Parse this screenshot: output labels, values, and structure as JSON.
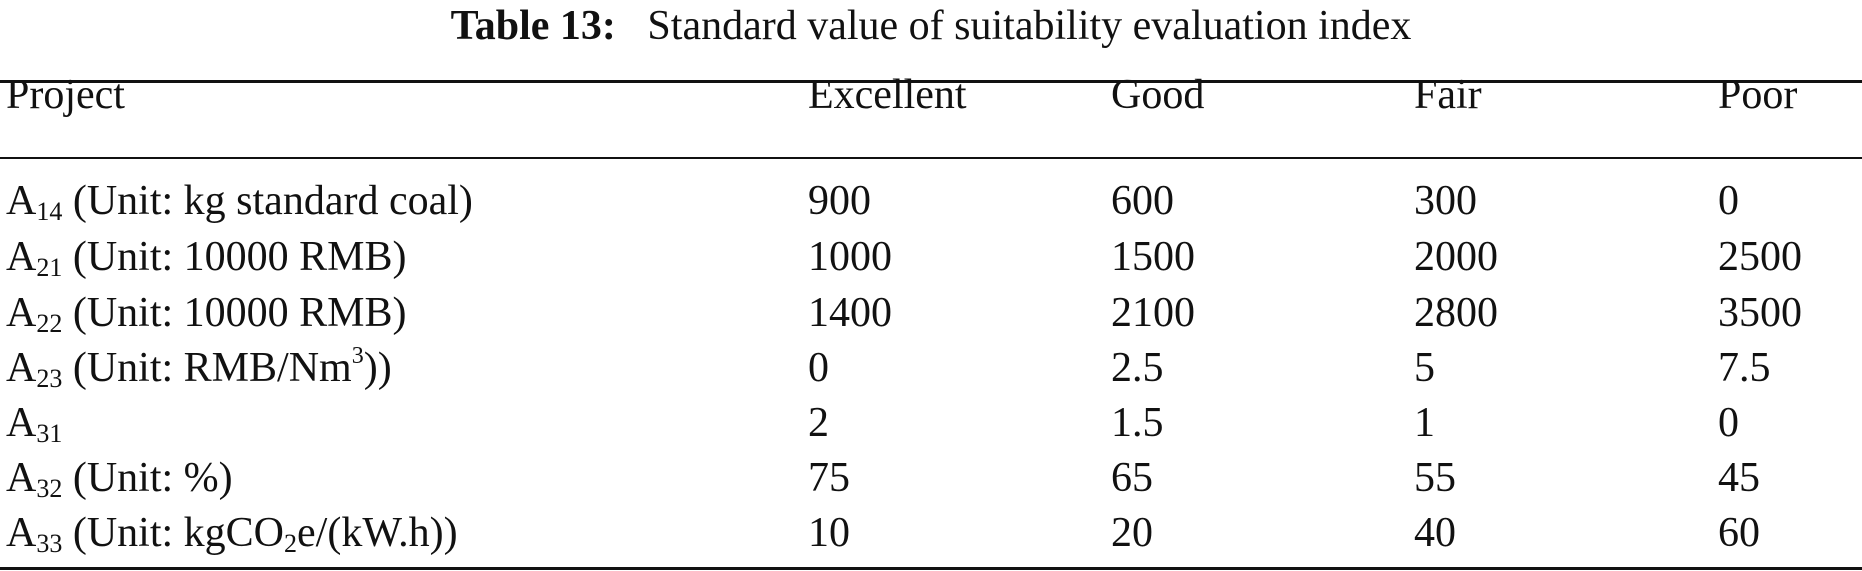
{
  "caption": {
    "label": "Table 13:",
    "text": "Standard value of suitability evaluation index"
  },
  "table": {
    "headers": [
      "Project",
      "Excellent",
      "Good",
      "Fair",
      "Poor"
    ],
    "rows": [
      {
        "symbol": "A",
        "subscript": "14",
        "unit_before": " (Unit: kg standard coal)",
        "superscript": "",
        "unit_after": "",
        "values": [
          "900",
          "600",
          "300",
          "0"
        ]
      },
      {
        "symbol": "A",
        "subscript": "21",
        "unit_before": " (Unit: 10000 RMB)",
        "superscript": "",
        "unit_after": "",
        "values": [
          "1000",
          "1500",
          "2000",
          "2500"
        ]
      },
      {
        "symbol": "A",
        "subscript": "22",
        "unit_before": " (Unit: 10000 RMB)",
        "superscript": "",
        "unit_after": "",
        "values": [
          "1400",
          "2100",
          "2800",
          "3500"
        ]
      },
      {
        "symbol": "A",
        "subscript": "23",
        "unit_before": " (Unit: RMB/Nm",
        "superscript": "3",
        "unit_after": "))",
        "values": [
          "0",
          "2.5",
          "5",
          "7.5"
        ]
      },
      {
        "symbol": "A",
        "subscript": "31",
        "unit_before": "",
        "superscript": "",
        "unit_after": "",
        "values": [
          "2",
          "1.5",
          "1",
          "0"
        ]
      },
      {
        "symbol": "A",
        "subscript": "32",
        "unit_before": " (Unit: %)",
        "superscript": "",
        "unit_after": "",
        "values": [
          "75",
          "65",
          "55",
          "45"
        ]
      },
      {
        "symbol": "A",
        "subscript": "33",
        "unit_before": " (Unit: kgCO",
        "inline_subscript": "2",
        "unit_after": "e/(kW.h))",
        "values": [
          "10",
          "20",
          "40",
          "60"
        ]
      }
    ]
  }
}
